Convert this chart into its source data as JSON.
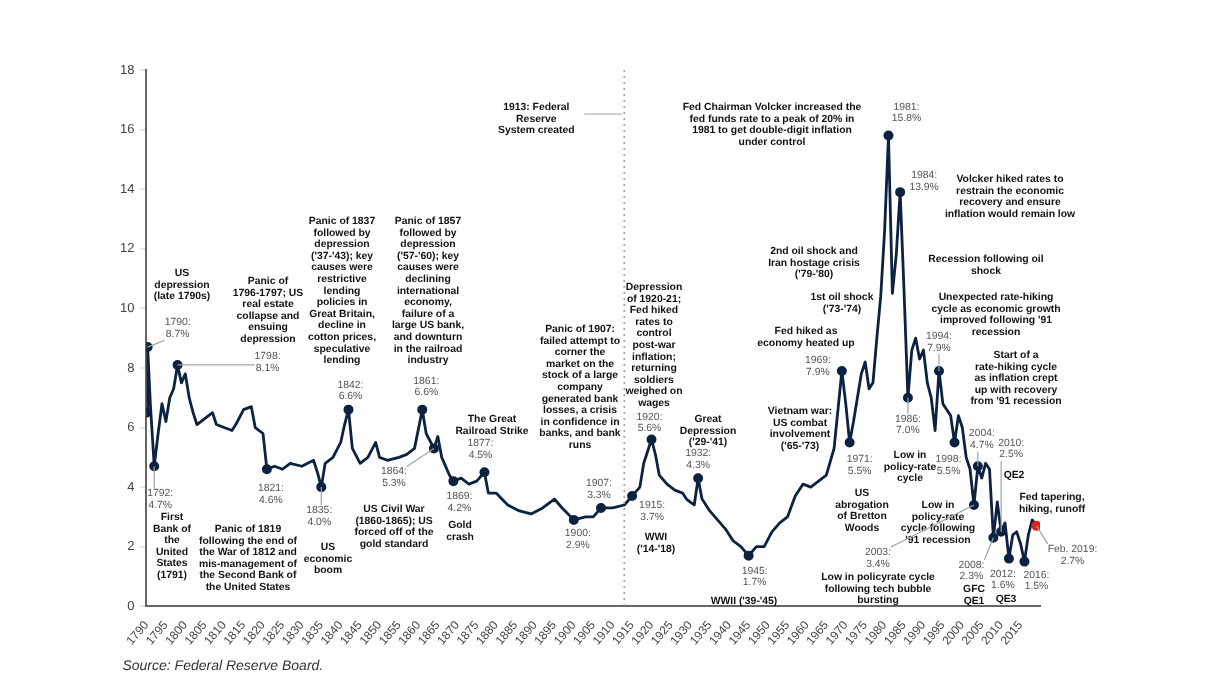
{
  "chart_data": {
    "type": "line",
    "xlim": [
      1790,
      2020
    ],
    "xticks": [
      1790,
      1795,
      1800,
      1805,
      1810,
      1815,
      1820,
      1825,
      1830,
      1835,
      1840,
      1845,
      1850,
      1855,
      1860,
      1865,
      1870,
      1875,
      1880,
      1885,
      1890,
      1895,
      1900,
      1905,
      1910,
      1915,
      1920,
      1925,
      1930,
      1935,
      1940,
      1945,
      1950,
      1955,
      1960,
      1965,
      1970,
      1975,
      1980,
      1985,
      1990,
      1995,
      2000,
      2005,
      2010,
      2015
    ],
    "ylim": [
      0,
      18
    ],
    "yticks": [
      0,
      2,
      4,
      6,
      8,
      10,
      12,
      14,
      16,
      18
    ],
    "grid": false,
    "legend": false,
    "series": [
      {
        "color": "#0d2240",
        "marker": "none",
        "line_style": "solid",
        "x": [
          1790,
          1790.3,
          1791,
          1792,
          1793,
          1794,
          1795,
          1796,
          1797,
          1798,
          1799,
          1800,
          1801,
          1802,
          1803,
          1805,
          1807,
          1808,
          1810,
          1812,
          1813,
          1815,
          1817,
          1818,
          1820,
          1821,
          1823,
          1825,
          1827,
          1830,
          1833,
          1834,
          1835,
          1836,
          1838,
          1840,
          1841,
          1842,
          1843,
          1845,
          1847,
          1849,
          1850,
          1852,
          1855,
          1857,
          1859,
          1861,
          1862,
          1864,
          1865,
          1866,
          1868,
          1869,
          1871,
          1873,
          1875,
          1877,
          1878,
          1880,
          1883,
          1886,
          1889,
          1892,
          1895,
          1897,
          1900,
          1903,
          1905,
          1907,
          1910,
          1913,
          1915,
          1917,
          1918,
          1920,
          1921,
          1922,
          1924,
          1926,
          1928,
          1929,
          1930,
          1931,
          1932,
          1933,
          1935,
          1937,
          1939,
          1941,
          1943,
          1945,
          1947,
          1949,
          1951,
          1953,
          1955,
          1957,
          1959,
          1961,
          1963,
          1965,
          1967,
          1969,
          1970,
          1971,
          1972,
          1974,
          1975,
          1976,
          1977,
          1978,
          1979,
          1980,
          1981,
          1982,
          1983,
          1984,
          1985,
          1986,
          1987,
          1988,
          1989,
          1990,
          1991,
          1992,
          1993,
          1994,
          1995,
          1996,
          1997,
          1998,
          1999,
          2000,
          2001,
          2002,
          2003,
          2004,
          2005,
          2006,
          2007,
          2008,
          2009,
          2010,
          2011,
          2012,
          2013,
          2014,
          2015,
          2016,
          2017,
          2018,
          2019.1
        ],
        "values": [
          6.5,
          8.7,
          6.8,
          4.7,
          5.8,
          6.8,
          6.2,
          7.0,
          7.3,
          8.1,
          7.5,
          7.8,
          7.0,
          6.5,
          6.1,
          6.3,
          6.5,
          6.1,
          6.0,
          5.9,
          6.1,
          6.6,
          6.7,
          6.0,
          5.8,
          4.6,
          4.7,
          4.6,
          4.8,
          4.7,
          4.9,
          4.5,
          4.0,
          4.8,
          5.0,
          5.5,
          6.1,
          6.6,
          5.3,
          4.8,
          5.0,
          5.5,
          5.0,
          4.9,
          5.0,
          5.1,
          5.3,
          6.6,
          5.8,
          5.3,
          5.7,
          5.0,
          4.4,
          4.2,
          4.3,
          4.1,
          4.2,
          4.5,
          3.8,
          3.8,
          3.4,
          3.2,
          3.1,
          3.3,
          3.6,
          3.3,
          2.9,
          3.0,
          3.0,
          3.3,
          3.3,
          3.4,
          3.7,
          4.0,
          4.8,
          5.6,
          5.1,
          4.4,
          4.1,
          3.9,
          3.8,
          3.6,
          3.5,
          3.4,
          4.3,
          3.6,
          3.2,
          2.9,
          2.6,
          2.2,
          2.0,
          1.7,
          2.0,
          2.0,
          2.5,
          2.8,
          3.0,
          3.7,
          4.1,
          4.0,
          4.2,
          4.4,
          5.3,
          7.9,
          6.8,
          5.5,
          6.2,
          7.8,
          8.2,
          7.3,
          7.5,
          9.0,
          10.4,
          12.6,
          15.8,
          10.5,
          11.8,
          13.9,
          10.6,
          7.0,
          8.6,
          9.0,
          8.3,
          8.6,
          7.5,
          7.0,
          5.9,
          7.9,
          6.8,
          6.6,
          6.4,
          5.5,
          6.4,
          6.0,
          5.0,
          4.6,
          3.4,
          4.7,
          4.3,
          4.8,
          4.6,
          2.3,
          3.5,
          2.5,
          2.8,
          1.6,
          2.4,
          2.5,
          2.1,
          1.5,
          2.4,
          2.9,
          2.7
        ]
      },
      {
        "type": "scatter",
        "marker": "circle",
        "x": [
          1790,
          1790.3,
          1792,
          1798,
          1821,
          1835,
          1842,
          1861,
          1864,
          1869,
          1877,
          1900,
          1907,
          1915,
          1920,
          1932,
          1945,
          1969,
          1971,
          1981,
          1984,
          1986,
          1994,
          1998,
          2003,
          2004,
          2008,
          2010,
          2012,
          2016,
          2019.1
        ],
        "values": [
          6.5,
          8.7,
          4.7,
          8.1,
          4.6,
          4.0,
          6.6,
          6.6,
          5.3,
          4.2,
          4.5,
          2.9,
          3.3,
          3.7,
          5.6,
          4.3,
          1.7,
          7.9,
          5.5,
          15.8,
          13.9,
          7.0,
          7.9,
          5.5,
          3.4,
          4.7,
          2.3,
          2.5,
          1.6,
          1.5,
          2.7
        ],
        "colors": [
          "#0d2240",
          "#0d2240",
          "#0d2240",
          "#0d2240",
          "#0d2240",
          "#0d2240",
          "#0d2240",
          "#0d2240",
          "#0d2240",
          "#0d2240",
          "#0d2240",
          "#0d2240",
          "#0d2240",
          "#0d2240",
          "#0d2240",
          "#0d2240",
          "#0d2240",
          "#0d2240",
          "#0d2240",
          "#0d2240",
          "#0d2240",
          "#0d2240",
          "#0d2240",
          "#0d2240",
          "#0d2240",
          "#0d2240",
          "#0d2240",
          "#0d2240",
          "#0d2240",
          "#0d2240",
          "#e0201b"
        ]
      }
    ],
    "ref_lines": [
      {
        "axis": "x",
        "value": 1913,
        "label": "1913: Federal Reserve System created",
        "color": "#9aa3ad",
        "line_style": "dotted"
      }
    ],
    "annotations": [
      {
        "text": "1790: 8.7%",
        "x": 1790.3,
        "y": 8.7
      },
      {
        "text": "1792: 4.7%",
        "x": 1792,
        "y": 4.7
      },
      {
        "text": "1798: 8.1%",
        "x": 1798,
        "y": 8.1
      },
      "US depression (late 1790s)",
      "Panic of 1796-1797; US real estate collapse and ensuing depression",
      "First Bank of the United States (1791)",
      "Panic of 1819 following the end of the War of 1812 and mis-management of the Second Bank of the United States",
      {
        "text": "1821: 4.6%",
        "x": 1821,
        "y": 4.6
      },
      {
        "text": "1835: 4.0%",
        "x": 1835,
        "y": 4.0
      },
      "US economic boom",
      {
        "text": "1842: 6.6%",
        "x": 1842,
        "y": 6.6
      },
      "Panic of 1837 followed by depression ('37-'43); key causes were restrictive lending policies in Great Britain, decline in cotton prices, speculative lending",
      {
        "text": "1861: 6.6%",
        "x": 1861,
        "y": 6.6
      },
      "Panic of 1857 followed by depression ('57-'60); key causes were declining international economy, failure of a large US bank, and downturn in the railroad industry",
      {
        "text": "1864: 5.3%",
        "x": 1864,
        "y": 5.3
      },
      "US Civil War (1860-1865); US forced off of the gold standard",
      {
        "text": "1869: 4.2%",
        "x": 1869,
        "y": 4.2
      },
      "Gold crash",
      {
        "text": "1877: 4.5%",
        "x": 1877,
        "y": 4.5
      },
      "The Great Railroad Strike",
      {
        "text": "1900: 2.9%",
        "x": 1900,
        "y": 2.9
      },
      {
        "text": "1907: 3.3%",
        "x": 1907,
        "y": 3.3
      },
      "Panic of 1907: failed attempt to corner the market on the stock of a large company generated bank losses, a crisis in confidence in banks, and bank runs",
      {
        "text": "1915: 3.7%",
        "x": 1915,
        "y": 3.7
      },
      "WWI ('14-'18)",
      {
        "text": "1920: 5.6%",
        "x": 1920,
        "y": 5.6
      },
      "Depression of 1920-21; Fed hiked rates to control post-war inflation; returning soldiers weighed on wages",
      "Great Depression ('29-'41)",
      {
        "text": "1932: 4.3%",
        "x": 1932,
        "y": 4.3
      },
      {
        "text": "1945: 1.7%",
        "x": 1945,
        "y": 1.7
      },
      "WWII ('39-'45)",
      {
        "text": "1969: 7.9%",
        "x": 1969,
        "y": 7.9
      },
      "Fed hiked as economy heated up",
      "Vietnam war: US combat involvement ('65-'73)",
      {
        "text": "1971: 5.5%",
        "x": 1971,
        "y": 5.5
      },
      "US abrogation of Bretton Woods",
      "1st oil shock ('73-'74)",
      "2nd oil shock and Iran hostage crisis ('79-'80)",
      "Fed Chairman Volcker increased the fed funds rate to a peak of 20% in 1981 to get double-digit inflation under control",
      {
        "text": "1981: 15.8%",
        "x": 1981,
        "y": 15.8
      },
      {
        "text": "1984: 13.9%",
        "x": 1984,
        "y": 13.9
      },
      "Volcker hiked rates to restrain the economic recovery and ensure inflation would remain low",
      "Recession following oil shock",
      {
        "text": "1986: 7.0%",
        "x": 1986,
        "y": 7.0
      },
      "Low in policy-rate cycle",
      "Unexpected rate-hiking cycle as economic growth improved following '91 recession",
      {
        "text": "1994: 7.9%",
        "x": 1994,
        "y": 7.9
      },
      {
        "text": "1998: 5.5%",
        "x": 1998,
        "y": 5.5
      },
      "Start of a rate-hiking cycle as inflation crept up with recovery from '91 recession",
      "Low in policy-rate cycle following '91 recession",
      {
        "text": "2004: 4.7%",
        "x": 2004,
        "y": 4.7
      },
      {
        "text": "2003: 3.4%",
        "x": 2003,
        "y": 3.4
      },
      "Low in policyrate cycle following tech bubble bursting",
      {
        "text": "2008: 2.3%",
        "x": 2008,
        "y": 2.3
      },
      "GFC QE1",
      {
        "text": "2010: 2.5%",
        "x": 2010,
        "y": 2.5
      },
      "QE2",
      {
        "text": "2012: 1.6%",
        "x": 2012,
        "y": 1.6
      },
      "QE3",
      {
        "text": "2016: 1.5%",
        "x": 2016,
        "y": 1.5
      },
      "Fed tapering, hiking, runoff",
      {
        "text": "Feb. 2019: 2.7%",
        "x": 2019.1,
        "y": 2.7
      },
      "Source: Federal Reserve Board."
    ]
  }
}
